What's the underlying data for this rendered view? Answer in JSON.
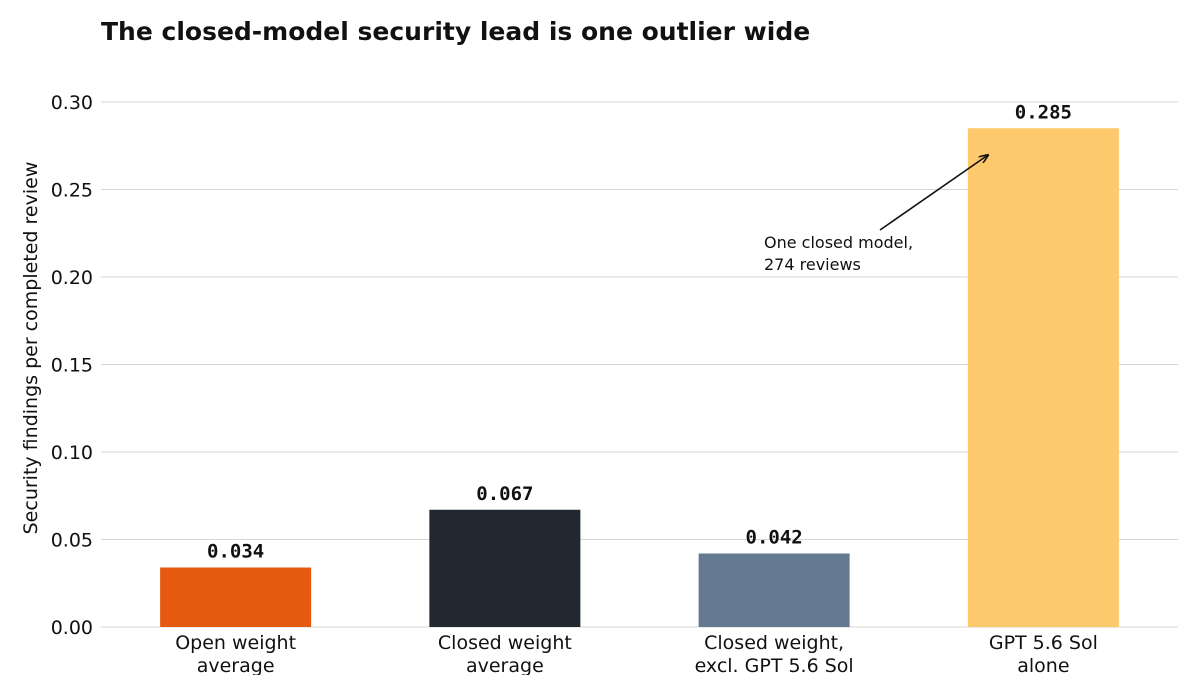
{
  "chart_data": {
    "type": "bar",
    "title": "The closed-model security lead is one outlier wide",
    "ylabel": "Security findings per completed review",
    "xlabel": "",
    "ylim": [
      0,
      0.3
    ],
    "yticks": [
      "0.00",
      "0.05",
      "0.10",
      "0.15",
      "0.20",
      "0.25",
      "0.30"
    ],
    "grid": true,
    "categories": [
      [
        "Open weight",
        "average"
      ],
      [
        "Closed weight",
        "average"
      ],
      [
        "Closed weight,",
        "excl. GPT 5.6 Sol"
      ],
      [
        "GPT 5.6 Sol",
        "alone"
      ]
    ],
    "values": [
      0.034,
      0.067,
      0.042,
      0.285
    ],
    "value_labels": [
      "0.034",
      "0.067",
      "0.042",
      "0.285"
    ],
    "colors": [
      "#e55a0f",
      "#212831",
      "#657990",
      "#fec86c"
    ],
    "annotation": {
      "lines": [
        "One closed model,",
        "274 reviews"
      ],
      "target_bar": 3
    }
  }
}
